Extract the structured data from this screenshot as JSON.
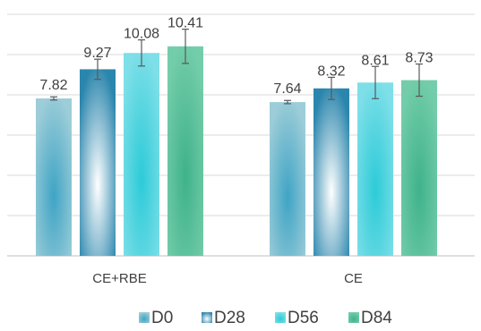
{
  "chart_data": {
    "type": "bar",
    "categories": [
      "CE+RBE",
      "CE"
    ],
    "series": [
      {
        "name": "D0",
        "values": [
          7.82,
          7.64
        ],
        "errors": [
          0.08,
          0.08
        ]
      },
      {
        "name": "D28",
        "values": [
          9.27,
          8.32
        ],
        "errors": [
          0.5,
          0.55
        ]
      },
      {
        "name": "D56",
        "values": [
          10.08,
          8.61
        ],
        "errors": [
          0.65,
          0.8
        ]
      },
      {
        "name": "D84",
        "values": [
          10.41,
          8.73
        ],
        "errors": [
          0.85,
          0.8
        ]
      }
    ],
    "ylim": [
      0,
      12
    ],
    "y_ticks": [
      0,
      2,
      4,
      6,
      8,
      10,
      12
    ],
    "y_tick_labels_visible": false,
    "grid": true,
    "error_bars": true,
    "data_labels": true,
    "legend": "bottom",
    "colors": {
      "D0": {
        "main": "#3fa4c5",
        "light": "#9ccdd8"
      },
      "D28": {
        "main": "#2b86ad",
        "light": "#ffffff"
      },
      "D56": {
        "main": "#2ccbd8",
        "light": "#7edfe8"
      },
      "D84": {
        "main": "#3fb28b",
        "light": "#74cdaa"
      }
    },
    "gridline_color": "#d9d9d9",
    "axis_color": "#bfbfbf",
    "label_color": "#404040"
  }
}
